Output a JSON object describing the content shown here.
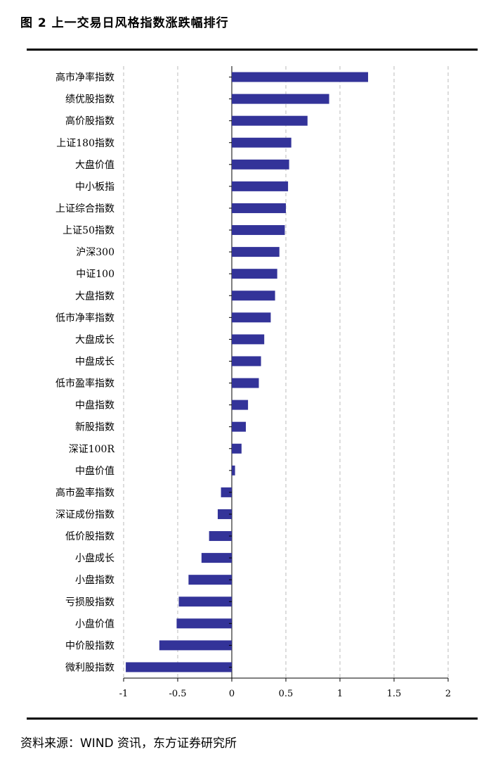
{
  "header": {
    "title": "图 2  上一交易日风格指数涨跌幅排行"
  },
  "footer": {
    "source": "资料来源：WIND 资讯，东方证券研究所"
  },
  "colors": {
    "bar": "#333399",
    "grid": "#bbbbbb",
    "axis": "#000000"
  },
  "chart_data": {
    "type": "bar",
    "orientation": "horizontal",
    "title": "上一交易日风格指数涨跌幅排行",
    "xlabel": "",
    "ylabel": "",
    "xlim": [
      -1,
      2
    ],
    "xticks": [
      -1,
      -0.5,
      0,
      0.5,
      1,
      1.5,
      2
    ],
    "xtick_labels": [
      "-1",
      "-0.5",
      "0",
      "0.5",
      "1",
      "1.5",
      "2"
    ],
    "grid": "vertical dashed",
    "categories": [
      "高市净率指数",
      "绩优股指数",
      "高价股指数",
      "上证180指数",
      "大盘价值",
      "中小板指",
      "上证综合指数",
      "上证50指数",
      "沪深300",
      "中证100",
      "大盘指数",
      "低市净率指数",
      "大盘成长",
      "中盘成长",
      "低市盈率指数",
      "中盘指数",
      "新股指数",
      "深证100R",
      "中盘价值",
      "高市盈率指数",
      "深证成份指数",
      "低价股指数",
      "小盘成长",
      "小盘指数",
      "亏损股指数",
      "小盘价值",
      "中价股指数",
      "微利股指数"
    ],
    "values": [
      1.26,
      0.9,
      0.7,
      0.55,
      0.53,
      0.52,
      0.5,
      0.49,
      0.44,
      0.42,
      0.4,
      0.36,
      0.3,
      0.27,
      0.25,
      0.15,
      0.13,
      0.09,
      0.03,
      -0.1,
      -0.13,
      -0.21,
      -0.28,
      -0.4,
      -0.49,
      -0.51,
      -0.67,
      -0.98
    ]
  }
}
